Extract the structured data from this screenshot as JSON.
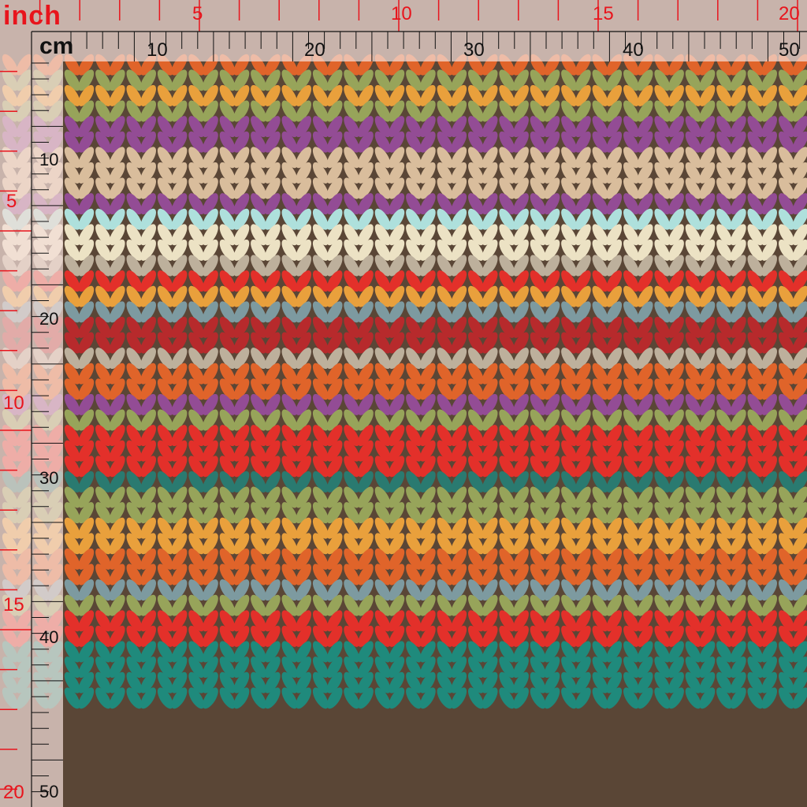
{
  "ruler": {
    "inch_unit": "inch",
    "cm_unit": "cm",
    "inch_top_labels": [
      "5",
      "10",
      "15",
      "20"
    ],
    "cm_top_labels": [
      "10",
      "20",
      "30",
      "40",
      "50"
    ],
    "inch_left_labels": [
      "5",
      "10",
      "15",
      "20"
    ],
    "cm_left_labels": [
      "10",
      "20",
      "30",
      "40",
      "50"
    ],
    "inch_color": "#e8141c",
    "cm_color": "#111111"
  },
  "pattern": {
    "name": "knit-chevron-stripes",
    "background": "#5a4636",
    "stripe_colors": [
      "#e0642a",
      "#97a45a",
      "#e9a03c",
      "#97a45a",
      "#934c95",
      "#934c95",
      "#d9bd9c",
      "#d9bd9c",
      "#d9bd9c",
      "#934c95",
      "#aee0dc",
      "#ece2c4",
      "#ece2c4",
      "#bdb09c",
      "#e3302a",
      "#e9a03c",
      "#7d9aa0",
      "#b72a2c",
      "#b72a2c",
      "#bdb09c",
      "#e0642a",
      "#e0642a",
      "#934c95",
      "#97a45a",
      "#e3302a",
      "#e3302a",
      "#e3302a",
      "#2a7a70",
      "#97a45a",
      "#97a45a",
      "#e9a03c",
      "#e9a03c",
      "#e0642a",
      "#e0642a",
      "#7d9aa0",
      "#97a45a",
      "#e3302a",
      "#e3302a",
      "#1f8a7c",
      "#1f8a7c"
    ]
  }
}
